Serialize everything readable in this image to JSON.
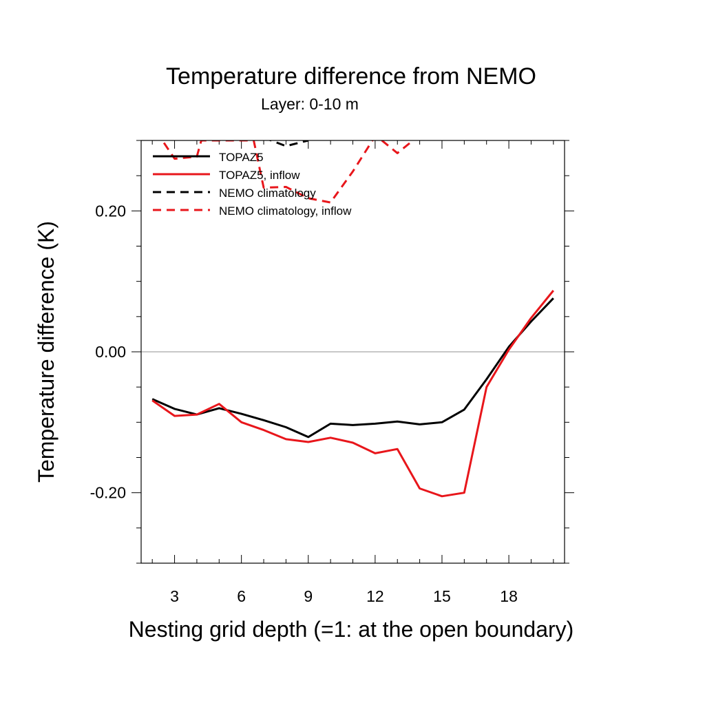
{
  "chart_data": {
    "type": "line",
    "title": "Temperature difference from NEMO",
    "subtitle": "Layer: 0-10 m",
    "xlabel": "Nesting grid depth (=1: at the open boundary)",
    "ylabel": "Temperature difference (K)",
    "xlim": [
      1.5,
      20.5
    ],
    "ylim": [
      -0.3,
      0.3
    ],
    "x_ticks": [
      3,
      6,
      9,
      12,
      15,
      18
    ],
    "x_tick_labels": [
      "3",
      "6",
      "9",
      "12",
      "15",
      "18"
    ],
    "y_ticks": [
      -0.2,
      0.0,
      0.2
    ],
    "y_tick_labels": [
      "-0.20",
      "0.00",
      "0.20"
    ],
    "zero_line": true,
    "grid": false,
    "legend_position": "top-left",
    "series": [
      {
        "name": "TOPAZ5",
        "color": "#000000",
        "dash": "solid",
        "x": [
          2,
          3,
          4,
          5,
          6,
          7,
          8,
          9,
          10,
          11,
          12,
          13,
          14,
          15,
          16,
          17,
          18,
          19,
          20
        ],
        "values": [
          -0.067,
          -0.081,
          -0.089,
          -0.08,
          -0.088,
          -0.097,
          -0.107,
          -0.121,
          -0.102,
          -0.104,
          -0.102,
          -0.099,
          -0.103,
          -0.1,
          -0.082,
          -0.039,
          0.007,
          0.043,
          0.076
        ]
      },
      {
        "name": "TOPAZ5, inflow",
        "color": "#e8161b",
        "dash": "solid",
        "x": [
          2,
          3,
          4,
          5,
          6,
          7,
          8,
          9,
          10,
          11,
          12,
          13,
          14,
          15,
          16,
          17,
          18,
          19,
          20
        ],
        "values": [
          -0.069,
          -0.091,
          -0.089,
          -0.074,
          -0.1,
          -0.111,
          -0.124,
          -0.128,
          -0.122,
          -0.129,
          -0.144,
          -0.138,
          -0.194,
          -0.205,
          -0.2,
          -0.05,
          0.003,
          0.048,
          0.087
        ]
      },
      {
        "name": "NEMO climatology",
        "color": "#000000",
        "dash": "dashed",
        "x": [
          7,
          8,
          9
        ],
        "values": [
          0.304,
          0.292,
          0.3
        ]
      },
      {
        "name": "NEMO climatology, inflow",
        "color": "#e8161b",
        "dash": "dashed",
        "x": [
          2,
          2.45,
          3,
          4,
          4.2,
          6.55,
          7,
          8,
          9,
          10,
          11,
          12,
          12.3,
          13,
          13.7
        ],
        "values": [
          0.306,
          0.3,
          0.274,
          0.277,
          0.3,
          0.3,
          0.233,
          0.234,
          0.218,
          0.212,
          0.256,
          0.306,
          0.3,
          0.282,
          0.3
        ]
      }
    ]
  }
}
